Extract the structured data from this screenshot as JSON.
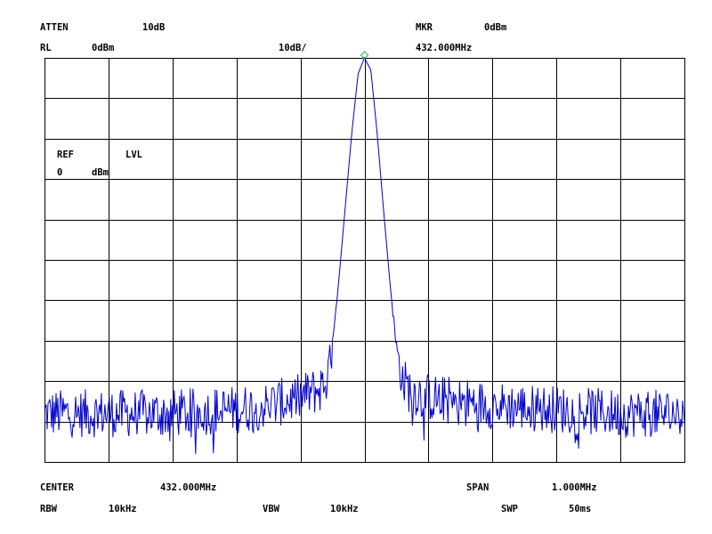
{
  "header": {
    "atten_label": "ATTEN",
    "atten_value": "10dB",
    "mkr_label": "MKR",
    "mkr_value": "0dBm",
    "rl_label": "RL",
    "rl_value": "0dBm",
    "scale": "10dB/",
    "mkr_freq": "432.000MHz"
  },
  "ref_box": {
    "ref_label": "REF",
    "lvl_label": "LVL",
    "value": "0",
    "unit": "dBm"
  },
  "footer": {
    "center_label": "CENTER",
    "center_value": "432.000MHz",
    "span_label": "SPAN",
    "span_value": "1.000MHz",
    "rbw_label": "RBW",
    "rbw_value": "10kHz",
    "vbw_label": "VBW",
    "vbw_value": "10kHz",
    "swp_label": "SWP",
    "swp_value": "50ms"
  },
  "colors": {
    "trace": "#0000cc",
    "marker": "#33aa55",
    "grid": "#000000",
    "text": "#000000"
  },
  "chart_data": {
    "type": "line",
    "x_unit": "MHz",
    "y_unit": "dBm",
    "xlim": [
      431.5,
      432.5
    ],
    "ylim": [
      -100,
      0
    ],
    "grid": true,
    "x_divisions": 10,
    "y_divisions": 10,
    "noise_floor_dbm": -88,
    "noise_spread_db": 6,
    "series": [
      {
        "x": [
          431.5,
          431.6,
          431.7,
          431.8,
          431.85,
          431.9,
          431.93,
          431.94,
          431.95,
          431.96,
          431.97,
          431.98,
          431.99,
          432.0,
          432.01,
          432.02,
          432.03,
          432.04,
          432.05,
          432.06,
          432.07,
          432.1,
          432.15,
          432.2,
          432.3,
          432.4,
          432.5
        ],
        "y": [
          -88,
          -88,
          -88,
          -87,
          -86,
          -84,
          -82,
          -80,
          -72,
          -55,
          -37,
          -19,
          -4,
          0,
          -3,
          -19,
          -38,
          -56,
          -72,
          -80,
          -82,
          -84,
          -85,
          -86,
          -87,
          -88,
          -88
        ]
      }
    ],
    "marker": {
      "x": 432.0,
      "y": 0
    }
  }
}
